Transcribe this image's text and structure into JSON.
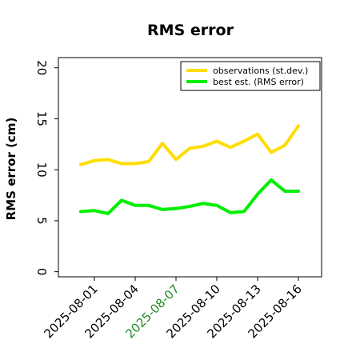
{
  "chart_data": {
    "type": "line",
    "title": "RMS error",
    "ylabel": "RMS error (cm)",
    "xlabel": "",
    "ylim": [
      -0.5,
      21
    ],
    "yticks": [
      0,
      5,
      10,
      15,
      20
    ],
    "x": [
      "2025-07-31",
      "2025-08-01",
      "2025-08-02",
      "2025-08-03",
      "2025-08-04",
      "2025-08-05",
      "2025-08-06",
      "2025-08-07",
      "2025-08-08",
      "2025-08-09",
      "2025-08-10",
      "2025-08-11",
      "2025-08-12",
      "2025-08-13",
      "2025-08-14",
      "2025-08-15",
      "2025-08-16"
    ],
    "xticks": [
      {
        "label": "2025-08-01",
        "color": "#000000"
      },
      {
        "label": "2025-08-04",
        "color": "#000000"
      },
      {
        "label": "2025-08-07",
        "color": "#228b22"
      },
      {
        "label": "2025-08-10",
        "color": "#000000"
      },
      {
        "label": "2025-08-13",
        "color": "#000000"
      },
      {
        "label": "2025-08-16",
        "color": "#000000"
      }
    ],
    "grid": false,
    "legend_position": "top-right",
    "series": [
      {
        "name": "observations (st.dev.)",
        "color": "#ffdd00",
        "values": [
          10.5,
          10.9,
          11.0,
          10.6,
          10.6,
          10.8,
          12.6,
          11.0,
          12.1,
          12.3,
          12.8,
          12.2,
          12.8,
          13.5,
          11.7,
          12.4,
          14.3
        ]
      },
      {
        "name": "best est. (RMS error)",
        "color": "#00ee00",
        "values": [
          5.9,
          6.0,
          5.7,
          7.0,
          6.5,
          6.5,
          6.1,
          6.2,
          6.4,
          6.7,
          6.5,
          5.8,
          5.9,
          7.6,
          9.0,
          7.9,
          7.9
        ]
      }
    ]
  }
}
